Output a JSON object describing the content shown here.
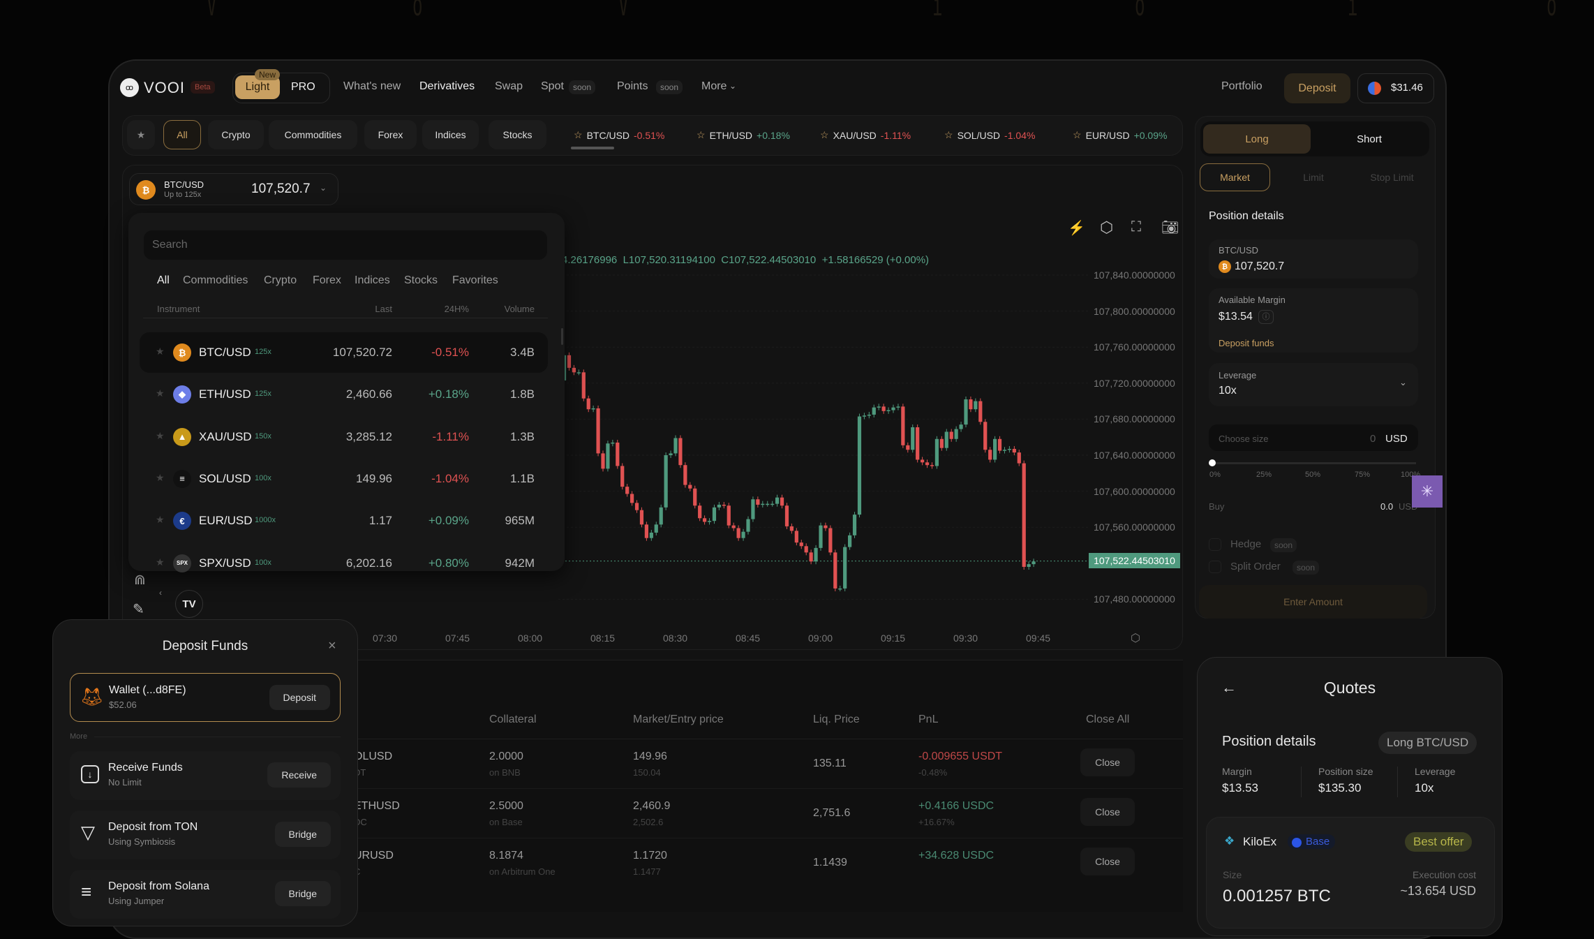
{
  "watermark": [
    "V",
    "o",
    "V",
    "i",
    "o",
    "i",
    "o"
  ],
  "header": {
    "logo": "VOOI",
    "beta": "Beta",
    "mode_new": "New",
    "mode_light": "Light",
    "mode_pro": "PRO",
    "nav": [
      "What's new",
      "Derivatives",
      "Swap",
      "Spot",
      "Points",
      "More"
    ],
    "soon": "soon",
    "portfolio": "Portfolio",
    "deposit": "Deposit",
    "balance": "$31.46"
  },
  "filters": [
    "All",
    "Crypto",
    "Commodities",
    "Forex",
    "Indices",
    "Stocks"
  ],
  "tickers": [
    {
      "pair": "BTC/USD",
      "chg": "-0.51%"
    },
    {
      "pair": "ETH/USD",
      "chg": "+0.18%"
    },
    {
      "pair": "XAU/USD",
      "chg": "-1.11%"
    },
    {
      "pair": "SOL/USD",
      "chg": "-1.04%"
    },
    {
      "pair": "EUR/USD",
      "chg": "+0.09%"
    }
  ],
  "symbol": {
    "pair": "BTC/USD",
    "leverage": "Up to 125x",
    "price": "107,520.7"
  },
  "dropdown": {
    "search_placeholder": "Search",
    "tabs": [
      "All",
      "Commodities",
      "Crypto",
      "Forex",
      "Indices",
      "Stocks",
      "Favorites"
    ],
    "cols": [
      "Instrument",
      "Last",
      "24H%",
      "Volume"
    ],
    "rows": [
      {
        "pair": "BTC/USD",
        "lev": "125x",
        "last": "107,520.72",
        "chg": "-0.51%",
        "vol": "3.4B",
        "icon": "bitcoin-icon",
        "color": "#e08a1e",
        "glyph": "₿"
      },
      {
        "pair": "ETH/USD",
        "lev": "125x",
        "last": "2,460.66",
        "chg": "+0.18%",
        "vol": "1.8B",
        "icon": "ethereum-icon",
        "color": "#6d7ee8",
        "glyph": "◆"
      },
      {
        "pair": "XAU/USD",
        "lev": "150x",
        "last": "3,285.12",
        "chg": "-1.11%",
        "vol": "1.3B",
        "icon": "gold-icon",
        "color": "#c99a1a",
        "glyph": "▲"
      },
      {
        "pair": "SOL/USD",
        "lev": "100x",
        "last": "149.96",
        "chg": "-1.04%",
        "vol": "1.1B",
        "icon": "solana-icon",
        "color": "#111",
        "glyph": "≡"
      },
      {
        "pair": "EUR/USD",
        "lev": "1000x",
        "last": "1.17",
        "chg": "+0.09%",
        "vol": "965M",
        "icon": "euro-flag-icon",
        "color": "#1c3b8a",
        "glyph": "€"
      },
      {
        "pair": "SPX/USD",
        "lev": "100x",
        "last": "6,202.16",
        "chg": "+0.80%",
        "vol": "942M",
        "icon": "spx-icon",
        "color": "#333",
        "glyph": "SPX"
      }
    ]
  },
  "chart_data": {
    "type": "candlestick",
    "ohlc_text": "4.26176996  L107,520.31194100  C107,522.44503010  +1.58166529 (+0.00%)",
    "y_ticks": [
      "107,840.00000000",
      "107,800.00000000",
      "107,760.00000000",
      "107,720.00000000",
      "107,680.00000000",
      "107,640.00000000",
      "107,600.00000000",
      "107,560.00000000",
      "107,480.00000000"
    ],
    "y_tick_values": [
      107840,
      107800,
      107760,
      107720,
      107680,
      107640,
      107600,
      107560,
      107480
    ],
    "x_ticks": [
      "07:30",
      "07:45",
      "08:00",
      "08:15",
      "08:30",
      "08:45",
      "09:00",
      "09:15",
      "09:30",
      "09:45"
    ],
    "current_price": "107,522.44503010",
    "current_price_value": 107522.445,
    "start_time": "08:07",
    "interval_minutes": 1,
    "first_open": 107723,
    "closes": [
      107751,
      107737,
      107732,
      107732,
      107703,
      107691,
      107692,
      107642,
      107625,
      107653,
      107654,
      107628,
      107605,
      107597,
      107587,
      107579,
      107563,
      107548,
      107554,
      107563,
      107582,
      107640,
      107642,
      107659,
      107629,
      107607,
      107603,
      107584,
      107570,
      107566,
      107567,
      107582,
      107585,
      107584,
      107562,
      107559,
      107548,
      107555,
      107569,
      107591,
      107585,
      107586,
      107586,
      107586,
      107593,
      107584,
      107561,
      107556,
      107543,
      107539,
      107532,
      107522,
      107537,
      107562,
      107559,
      107532,
      107492,
      107492,
      107538,
      107551,
      107574,
      107683,
      107684,
      107685,
      107693,
      107694,
      107689,
      107690,
      107693,
      107694,
      107651,
      107646,
      107671,
      107635,
      107632,
      107629,
      107628,
      107658,
      107648,
      107666,
      107658,
      107669,
      107674,
      107702,
      107691,
      107700,
      107677,
      107646,
      107635,
      107658,
      107645,
      107646,
      107647,
      107643,
      107631,
      107516,
      107519,
      107522
    ],
    "colors": {
      "up": "#4f9a7e",
      "down": "#e05252"
    }
  },
  "trade": {
    "long": "Long",
    "short": "Short",
    "order_types": [
      "Market",
      "Limit",
      "Stop Limit"
    ],
    "section": "Position details",
    "pair": "BTC/USD",
    "price": "107,520.7",
    "margin_label": "Available Margin",
    "margin": "$13.54",
    "deposit_funds": "Deposit funds",
    "leverage_label": "Leverage",
    "leverage": "10x",
    "size_placeholder": "Choose size",
    "size_value": "0",
    "size_unit": "USD",
    "slider_marks": [
      "0%",
      "25%",
      "50%",
      "75%",
      "100%"
    ],
    "slider_value_percent": 0,
    "buy_label": "Buy",
    "buy_value": "0.0",
    "buy_unit": "USD",
    "hedge": "Hedge",
    "split": "Split Order",
    "soon": "soon",
    "submit": "Enter Amount"
  },
  "positions": {
    "cols": [
      "Collateral",
      "Market/Entry price",
      "Liq. Price",
      "PnL"
    ],
    "close_all": "Close All",
    "close": "Close",
    "rows": [
      {
        "market": "OLUSD",
        "sub": "DT",
        "coll": "2.0000",
        "chain": "on BNB",
        "mkt": "149.96",
        "entry": "150.04",
        "liq": "135.11",
        "pnl": "-0.009655 USDT",
        "pnlpct": "-0.48%",
        "neg": true
      },
      {
        "market": "ETHUSD",
        "sub": "DC",
        "coll": "2.5000",
        "chain": "on Base",
        "mkt": "2,460.9",
        "entry": "2,502.6",
        "liq": "2,751.6",
        "pnl": "+0.4166 USDC",
        "pnlpct": "+16.67%",
        "neg": false
      },
      {
        "market": "URUSD",
        "sub": "C",
        "coll": "8.1874",
        "chain": "on Arbitrum One",
        "mkt": "1.1720",
        "entry": "1.1477",
        "liq": "1.1439",
        "pnl": "+34.628 USDC",
        "pnlpct": "",
        "neg": false
      }
    ]
  },
  "deposit_modal": {
    "title": "Deposit Funds",
    "wallet": "Wallet (...d8FE)",
    "wallet_balance": "$52.06",
    "deposit": "Deposit",
    "more": "More",
    "options": [
      {
        "title": "Receive Funds",
        "sub": "No Limit",
        "btn": "Receive"
      },
      {
        "title": "Deposit from TON",
        "sub": "Using Symbiosis",
        "btn": "Bridge"
      },
      {
        "title": "Deposit from Solana",
        "sub": "Using Jumper",
        "btn": "Bridge"
      }
    ]
  },
  "quotes": {
    "title": "Quotes",
    "section": "Position details",
    "badge": "Long BTC/USD",
    "margin_label": "Margin",
    "margin": "$13.53",
    "size_label": "Position size",
    "size": "$135.30",
    "lev_label": "Leverage",
    "lev": "10x",
    "provider": "KiloEx",
    "chain": "Base",
    "best": "Best offer",
    "qty_label": "Size",
    "qty": "0.001257 BTC",
    "cost_label": "Execution cost",
    "cost": "~13.654 USD"
  }
}
